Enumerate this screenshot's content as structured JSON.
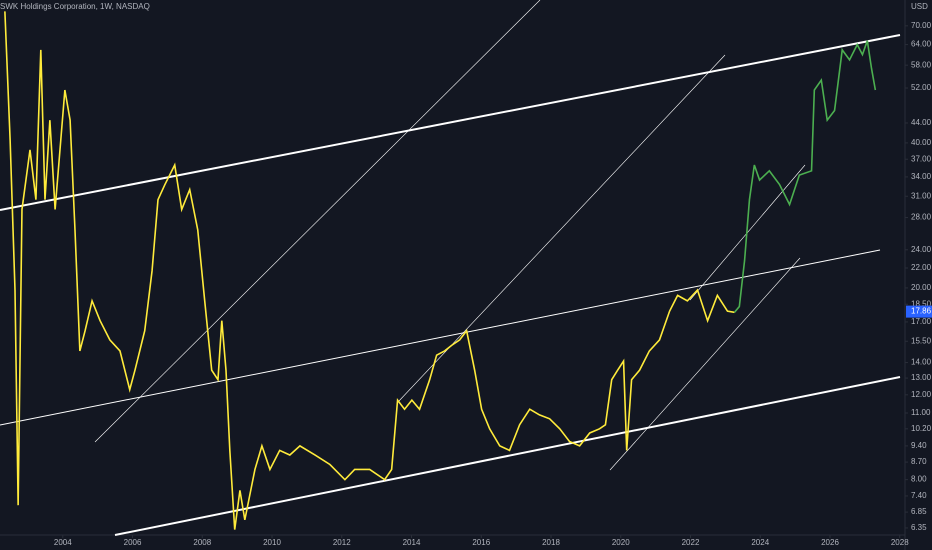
{
  "chart_data": {
    "type": "line",
    "title": "SWK Holdings Corporation, 1W, NASDAQ",
    "currency": "USD",
    "log_scale": true,
    "xlim": [
      2002.2,
      2028.15
    ],
    "xticks": [
      2004,
      2006,
      2008,
      2010,
      2012,
      2014,
      2016,
      2018,
      2020,
      2022,
      2024,
      2026,
      2028
    ],
    "ylim": [
      6.14,
      79.2
    ],
    "yticks": [
      {
        "value": 70,
        "label": "70.00"
      },
      {
        "value": 64,
        "label": "64.00"
      },
      {
        "value": 58,
        "label": "58.00"
      },
      {
        "value": 52,
        "label": "52.00"
      },
      {
        "value": 44,
        "label": "44.00"
      },
      {
        "value": 40,
        "label": "40.00"
      },
      {
        "value": 37,
        "label": "37.00"
      },
      {
        "value": 34,
        "label": "34.00"
      },
      {
        "value": 31,
        "label": "31.00"
      },
      {
        "value": 28,
        "label": "28.00"
      },
      {
        "value": 24,
        "label": "24.00"
      },
      {
        "value": 22,
        "label": "22.00"
      },
      {
        "value": 20,
        "label": "20.00"
      },
      {
        "value": 18.5,
        "label": "18.50"
      },
      {
        "value": 17,
        "label": "17.00"
      },
      {
        "value": 15.5,
        "label": "15.50"
      },
      {
        "value": 14,
        "label": "14.00"
      },
      {
        "value": 13,
        "label": "13.00"
      },
      {
        "value": 12,
        "label": "12.00"
      },
      {
        "value": 11,
        "label": "11.00"
      },
      {
        "value": 10.2,
        "label": "10.20"
      },
      {
        "value": 9.4,
        "label": "9.40"
      },
      {
        "value": 8.7,
        "label": "8.70"
      },
      {
        "value": 8,
        "label": "8.00"
      },
      {
        "value": 7.4,
        "label": "7.40"
      },
      {
        "value": 6.85,
        "label": "6.85"
      },
      {
        "value": 6.35,
        "label": "6.35"
      }
    ],
    "last_price": {
      "value": 17.86,
      "label": "17.86"
    },
    "series": [
      {
        "color": "#ffeb3b",
        "x": [
          2002.34,
          2002.49,
          2002.63,
          2002.72,
          2002.83,
          2003.06,
          2003.23,
          2003.37,
          2003.49,
          2003.63,
          2003.78,
          2003.92,
          2004.06,
          2004.21,
          2004.35,
          2004.49,
          2004.64,
          2004.84,
          2005.07,
          2005.35,
          2005.64,
          2005.92,
          2006.07,
          2006.35,
          2006.56,
          2006.73,
          2006.93,
          2007.21,
          2007.41,
          2007.64,
          2007.87,
          2008.07,
          2008.27,
          2008.45,
          2008.56,
          2008.68,
          2008.79,
          2008.93,
          2009.08,
          2009.22,
          2009.51,
          2009.71,
          2009.94,
          2010.22,
          2010.51,
          2010.8,
          2011.23,
          2011.66,
          2012.09,
          2012.37,
          2012.8,
          2013.23,
          2013.43,
          2013.6,
          2013.8,
          2014.01,
          2014.23,
          2014.52,
          2014.72,
          2014.95,
          2015.15,
          2015.38,
          2015.58,
          2015.81,
          2016.01,
          2016.24,
          2016.53,
          2016.81,
          2017.1,
          2017.39,
          2017.67,
          2017.96,
          2018.25,
          2018.53,
          2018.82,
          2019.11,
          2019.39,
          2019.56,
          2019.74,
          2019.91,
          2020.08,
          2020.17,
          2020.31,
          2020.54,
          2020.82,
          2021.11,
          2021.4,
          2021.63,
          2021.91,
          2022.2,
          2022.49,
          2022.77,
          2023.06,
          2023.26
        ],
        "values": [
          75,
          40.6,
          19.8,
          7.08,
          29.1,
          38.7,
          30.5,
          62.4,
          30.5,
          44.6,
          29.1,
          38.7,
          51.5,
          44.6,
          26.4,
          14.8,
          16.3,
          18.8,
          17.1,
          15.6,
          14.8,
          12.3,
          13.5,
          16.3,
          21.7,
          30.5,
          32.8,
          36.0,
          29.1,
          32.0,
          26.4,
          18.8,
          13.5,
          12.9,
          17.1,
          13.5,
          9.2,
          6.3,
          7.6,
          6.6,
          8.4,
          9.4,
          8.4,
          9.2,
          9.0,
          9.4,
          9.0,
          8.6,
          8.0,
          8.4,
          8.4,
          8.0,
          8.4,
          11.7,
          11.2,
          11.7,
          11.2,
          12.9,
          14.5,
          14.8,
          15.2,
          15.6,
          16.3,
          13.5,
          11.2,
          10.2,
          9.4,
          9.2,
          10.4,
          11.2,
          10.9,
          10.7,
          10.2,
          9.6,
          9.4,
          10.0,
          10.2,
          10.4,
          12.9,
          13.5,
          14.1,
          9.2,
          12.9,
          13.5,
          14.8,
          15.6,
          17.9,
          19.3,
          18.8,
          19.8,
          17.1,
          19.3,
          17.9,
          17.8
        ]
      },
      {
        "color": "#4caf50",
        "x": [
          2023.26,
          2023.4,
          2023.55,
          2023.69,
          2023.83,
          2023.98,
          2024.26,
          2024.55,
          2024.84,
          2025.12,
          2025.47,
          2025.55,
          2025.75,
          2025.92,
          2026.13,
          2026.35,
          2026.56,
          2026.78,
          2026.93,
          2027.07,
          2027.19,
          2027.3
        ],
        "values": [
          17.8,
          18.3,
          22.8,
          30.5,
          36.0,
          33.5,
          35.0,
          32.8,
          29.8,
          34.3,
          35.0,
          51.5,
          54.0,
          44.6,
          46.7,
          62.4,
          59.5,
          64.0,
          61.0,
          65.2,
          57.1,
          51.5
        ]
      }
    ]
  }
}
